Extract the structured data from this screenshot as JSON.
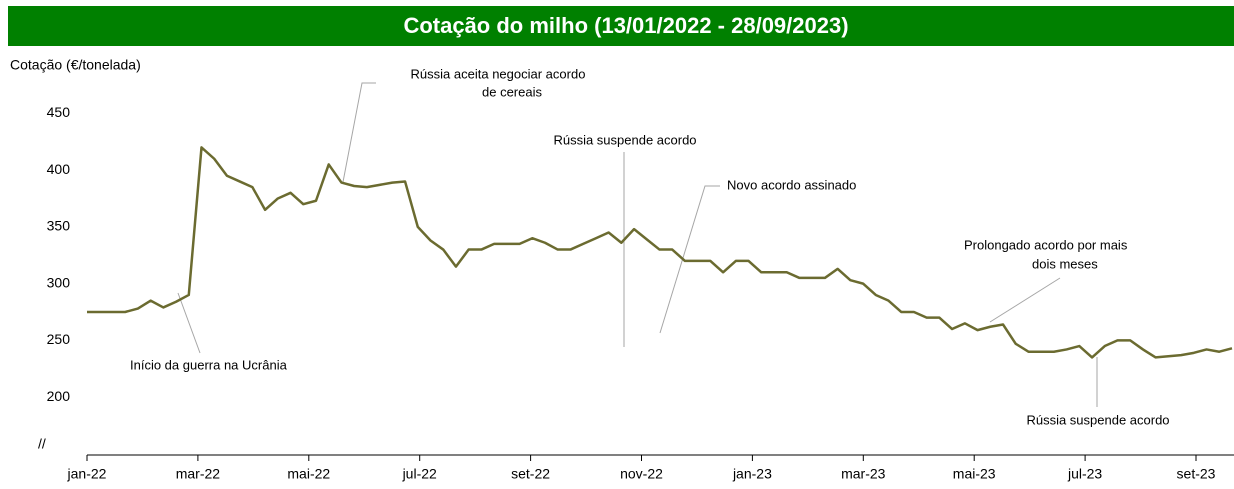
{
  "chart_data": {
    "type": "line",
    "title": "Cotação do milho (13/01/2022 - 28/09/2023)",
    "y_label": "Cotação (€/tonelada)",
    "axis_break": "//",
    "x_axis_labels": [
      "jan-22",
      "mar-22",
      "mai-22",
      "jul-22",
      "set-22",
      "nov-22",
      "jan-23",
      "mar-23",
      "mai-23",
      "jul-23",
      "set-23"
    ],
    "series": [
      {
        "name": "Cotação",
        "color": "#6b6b30",
        "values": [
          275,
          275,
          275,
          275,
          278,
          285,
          279,
          284,
          290,
          420,
          410,
          395,
          390,
          385,
          365,
          375,
          380,
          370,
          373,
          405,
          389,
          386,
          385,
          387,
          389,
          390,
          350,
          338,
          330,
          315,
          330,
          330,
          335,
          335,
          335,
          340,
          336,
          330,
          330,
          335,
          340,
          345,
          336,
          348,
          339,
          330,
          330,
          320,
          320,
          320,
          310,
          320,
          320,
          310,
          310,
          310,
          305,
          305,
          305,
          313,
          303,
          300,
          290,
          285,
          275,
          275,
          270,
          270,
          260,
          265,
          259,
          262,
          264,
          247,
          240,
          240,
          240,
          242,
          245,
          235,
          245,
          250,
          250,
          242,
          235,
          236,
          237,
          239,
          242,
          240,
          243
        ]
      }
    ],
    "ylim": [
      149,
      460
    ],
    "yticks": [
      200,
      250,
      300,
      350,
      400,
      450
    ],
    "annotations": [
      "Rússia aceita negociar acordo",
      "de cereais",
      "Rússia suspende acordo",
      "Novo acordo assinado",
      "Prolongado acordo por mais",
      "dois meses",
      "Rússia suspende acordo",
      "Início da guerra na Ucrânia"
    ]
  }
}
